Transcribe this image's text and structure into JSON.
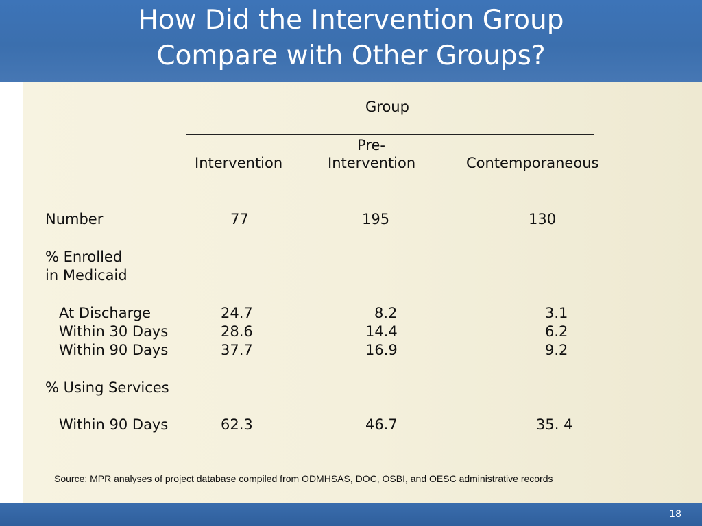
{
  "slide": {
    "title_line1": "How Did the Intervention Group",
    "title_line2": "Compare with Other Groups?",
    "page_number": "18"
  },
  "table": {
    "group_header": "Group",
    "columns": {
      "intervention": "Intervention",
      "pre_line1": "Pre-",
      "pre_line2": "Intervention",
      "contemporaneous": "Contemporaneous"
    },
    "number_row": {
      "label": "Number",
      "intervention": "77",
      "pre": "195",
      "contemporaneous": "130"
    },
    "enrolled_section": {
      "label_line1": "% Enrolled",
      "label_line2": "in Medicaid"
    },
    "enrolled_rows": [
      {
        "label": "At Discharge",
        "intervention": "24.7",
        "pre": "8.2",
        "contemporaneous": "3.1"
      },
      {
        "label": "Within 30 Days",
        "intervention": "28.6",
        "pre": "14.4",
        "contemporaneous": "6.2"
      },
      {
        "label": "Within 90 Days",
        "intervention": "37.7",
        "pre": "16.9",
        "contemporaneous": "9.2"
      }
    ],
    "services_section": {
      "label": "% Using Services"
    },
    "services_rows": [
      {
        "label": "Within 90 Days",
        "intervention": "62.3",
        "pre": "46.7",
        "contemporaneous": "35. 4"
      }
    ]
  },
  "source_note": "Source: MPR analyses of project database compiled from ODMHSAS, DOC, OSBI, and OESC administrative records"
}
